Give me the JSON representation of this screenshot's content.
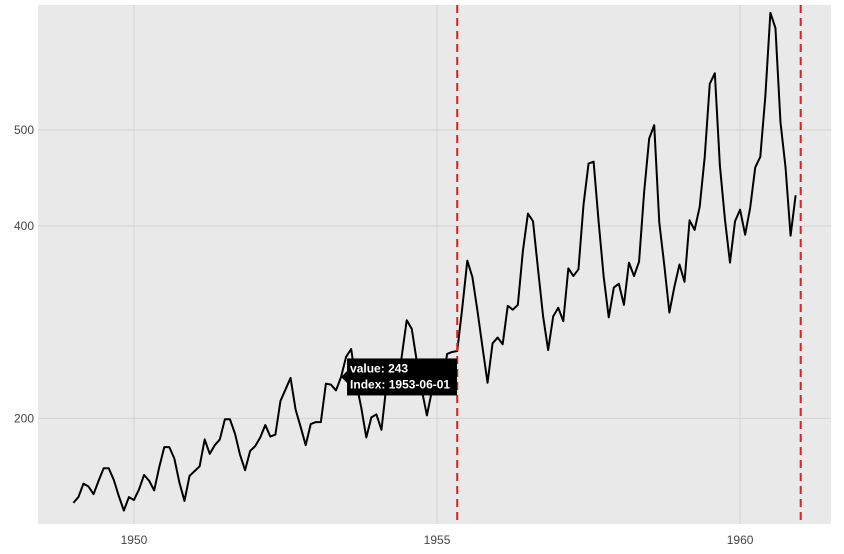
{
  "chart_data": {
    "type": "line",
    "title": "",
    "xlabel": "",
    "ylabel": "",
    "start": "1949-01",
    "frequency": "monthly",
    "values": [
      112,
      118,
      132,
      129,
      121,
      135,
      148,
      148,
      136,
      119,
      104,
      118,
      115,
      126,
      141,
      135,
      125,
      149,
      170,
      170,
      158,
      133,
      114,
      140,
      145,
      150,
      178,
      163,
      172,
      178,
      199,
      199,
      184,
      162,
      146,
      166,
      171,
      180,
      193,
      181,
      183,
      218,
      230,
      242,
      209,
      191,
      172,
      194,
      196,
      196,
      236,
      235,
      229,
      243,
      264,
      272,
      237,
      211,
      180,
      201,
      204,
      188,
      235,
      227,
      234,
      264,
      302,
      293,
      259,
      229,
      203,
      229,
      242,
      233,
      267,
      269,
      270,
      315,
      364,
      347,
      312,
      274,
      237,
      278,
      284,
      277,
      317,
      313,
      318,
      374,
      413,
      405,
      355,
      306,
      271,
      306,
      315,
      301,
      356,
      348,
      355,
      422,
      465,
      467,
      404,
      347,
      305,
      336,
      340,
      318,
      362,
      348,
      363,
      435,
      491,
      505,
      404,
      359,
      310,
      337,
      360,
      342,
      406,
      396,
      420,
      472,
      548,
      559,
      463,
      407,
      362,
      405,
      417,
      391,
      419,
      461,
      472,
      535,
      622,
      606,
      508,
      461,
      390,
      432
    ],
    "line_color": "#000000",
    "xlim": [
      "1948-06-01",
      "1961-07-01"
    ],
    "ylim": [
      90,
      630
    ],
    "x_ticks": [
      "1950",
      "1955",
      "1960"
    ],
    "y_ticks": [
      "200",
      "400",
      "500"
    ],
    "grid": true,
    "background": "#e9e9e9",
    "vlines": [
      {
        "x": "1955-05-01",
        "color": "#e11d1d",
        "style": "dashed"
      },
      {
        "x": "1961-01-01",
        "color": "#e11d1d",
        "style": "dashed"
      }
    ],
    "tooltip": {
      "value_line": "value: 243",
      "index_line": "Index: 1953-06-01",
      "x": "1953-06-01",
      "y": 243
    }
  }
}
